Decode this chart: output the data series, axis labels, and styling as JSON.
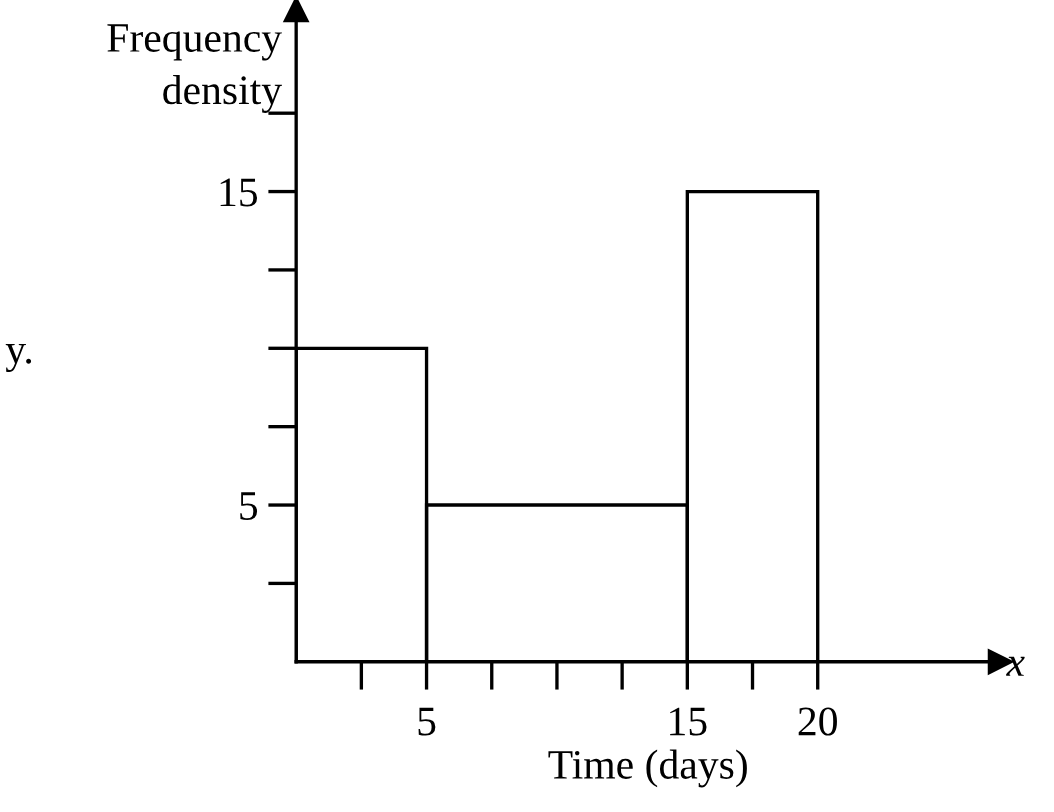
{
  "chart_data": {
    "type": "histogram",
    "xlabel": "Time (days)",
    "ylabel": "Frequency\ndensity",
    "bins": [
      0,
      5,
      15,
      20
    ],
    "values": [
      10,
      5,
      15
    ],
    "color": "#000000",
    "xlim": [
      0,
      27
    ],
    "ylim": [
      0,
      20.8
    ],
    "xticks": [
      {
        "value": 2.5,
        "label": null
      },
      5,
      {
        "value": 7.5,
        "label": null
      },
      {
        "value": 10,
        "label": null
      },
      {
        "value": 12.5,
        "label": null
      },
      15,
      {
        "value": 17.5,
        "label": null
      },
      20
    ],
    "yticks": [
      {
        "value": 2.5,
        "label": null
      },
      5,
      {
        "value": 7.5,
        "label": null
      },
      {
        "value": 10,
        "label": null
      },
      {
        "value": 12.5,
        "label": null
      },
      15,
      {
        "value": 17.5,
        "label": null
      }
    ],
    "grid": false,
    "annotations": [
      "y.",
      "x"
    ]
  }
}
